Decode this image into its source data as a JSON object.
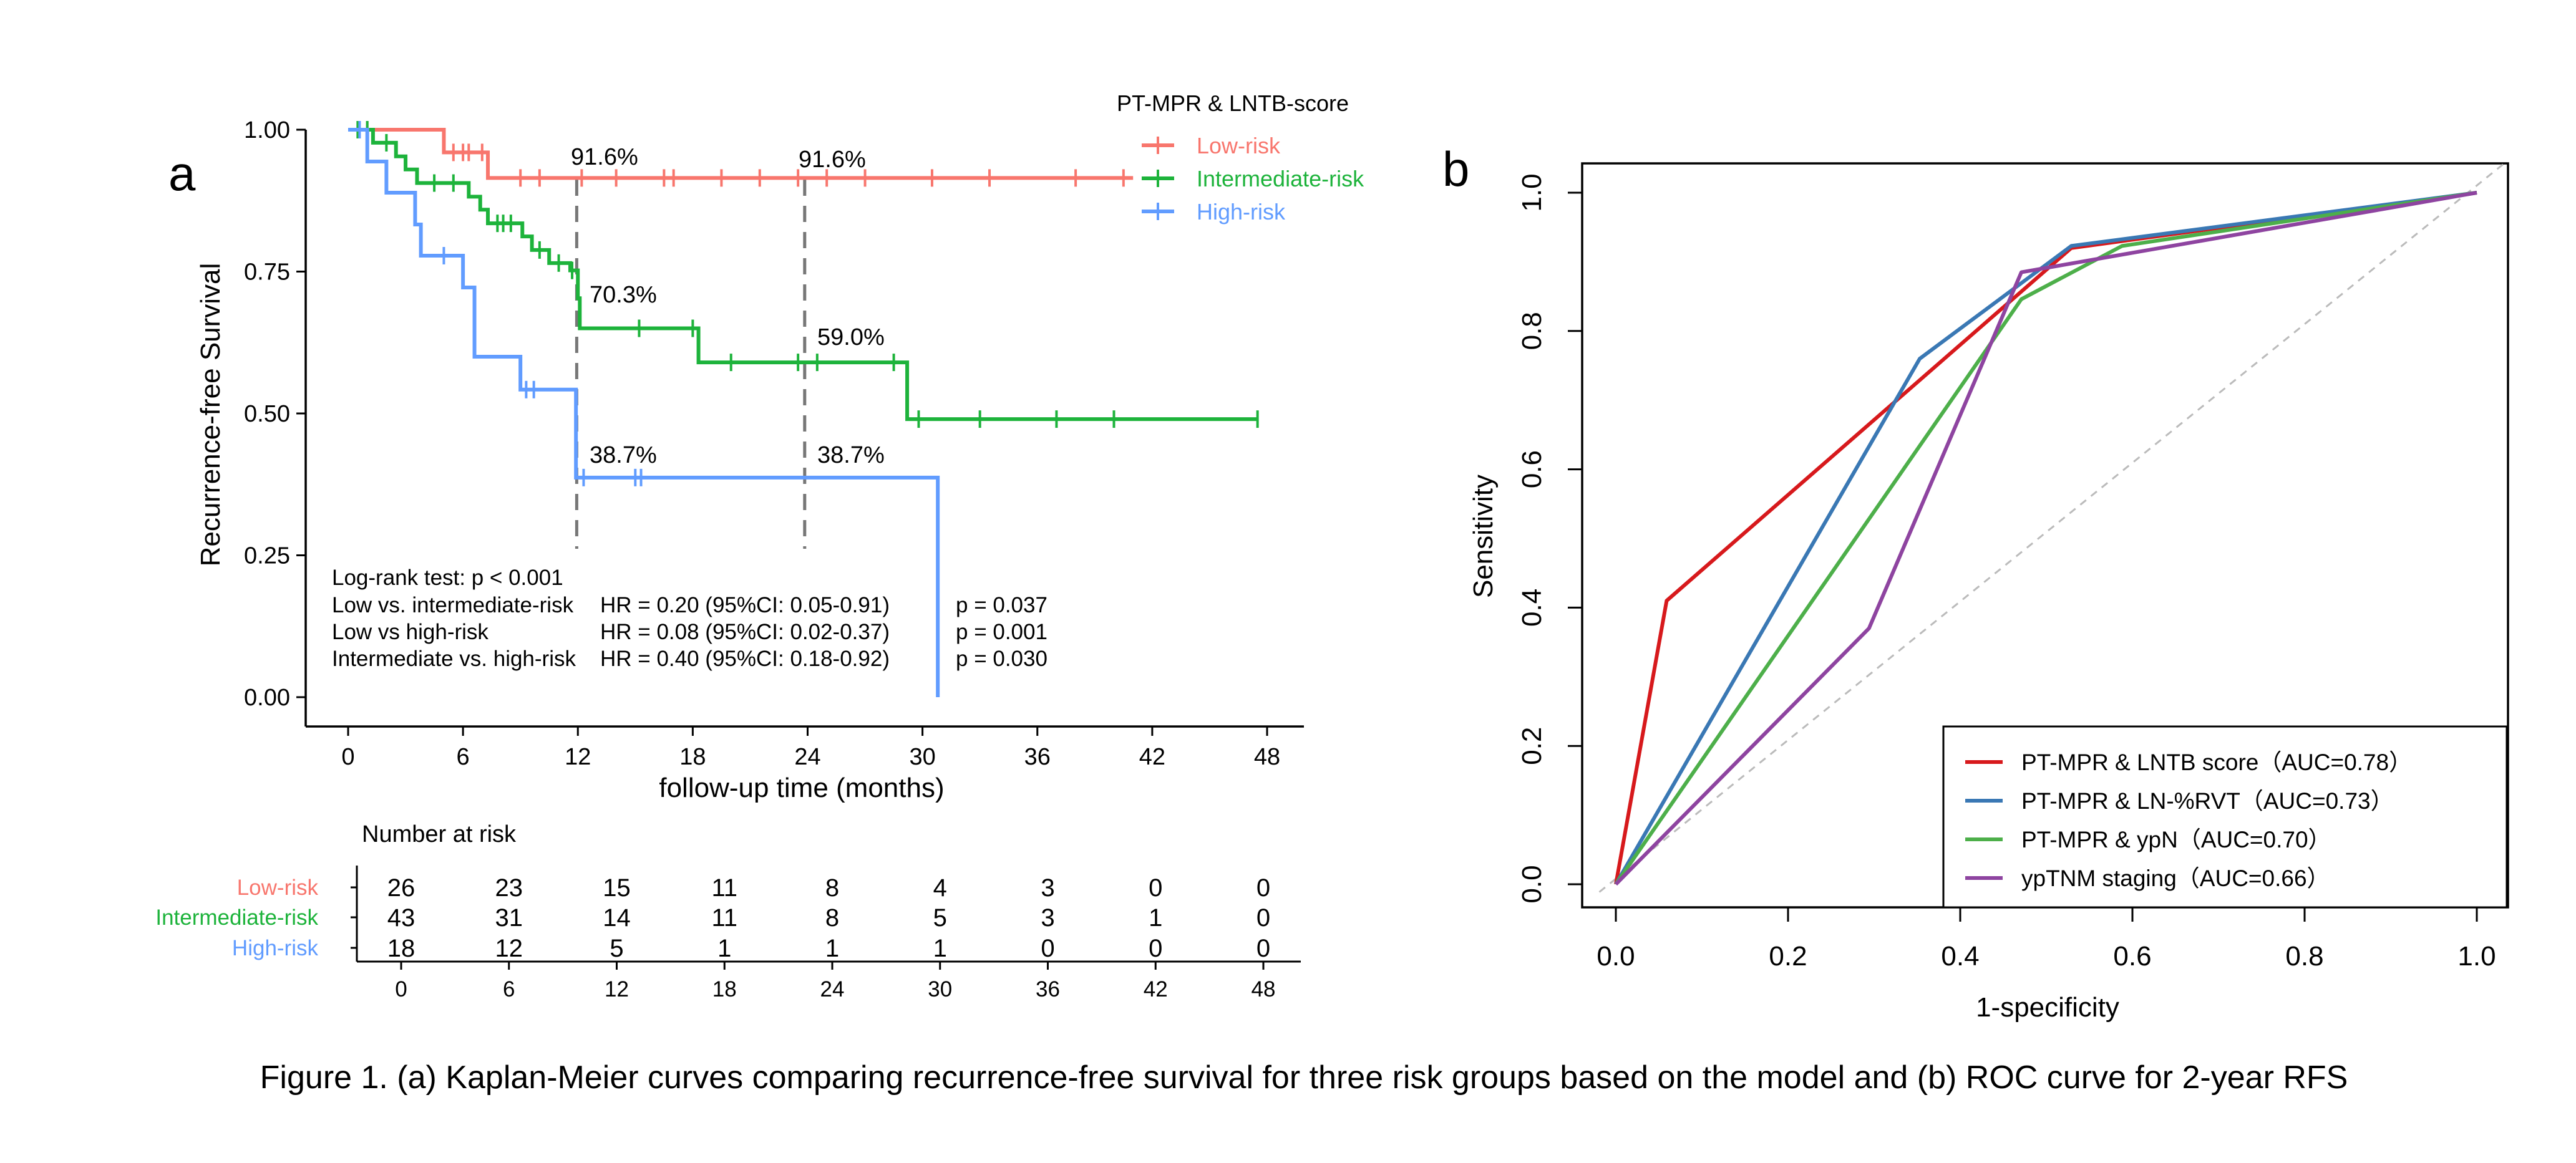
{
  "chart_data": [
    {
      "panel_label": "a",
      "type": "line",
      "subtype": "kaplan-meier",
      "title": "",
      "xlabel": "follow-up time (months)",
      "ylabel": "Recurrence-free Survival",
      "xlim": [
        0,
        48
      ],
      "ylim": [
        0,
        1
      ],
      "xticks": [
        "0",
        "6",
        "12",
        "18",
        "24",
        "30",
        "36",
        "42",
        "48"
      ],
      "yticks": [
        "0.00",
        "0.25",
        "0.50",
        "0.75",
        "1.00"
      ],
      "legend_title": "PT-MPR & LNTB-score",
      "series": [
        {
          "name": "Low-risk",
          "color": "#F8766D",
          "steps": [
            [
              0,
              1.0
            ],
            [
              5,
              0.96
            ],
            [
              7.3,
              0.915
            ],
            [
              41,
              0.915
            ]
          ],
          "censor_times": [
            1,
            5.5,
            6,
            6.3,
            7,
            9,
            10,
            12.2,
            14,
            16.5,
            17,
            19.5,
            21.5,
            23.5,
            25,
            27,
            30.5,
            33.5,
            38,
            40.5
          ]
        },
        {
          "name": "Intermediate-risk",
          "color": "#1DB33B",
          "steps": [
            [
              0,
              1.0
            ],
            [
              1.3,
              0.977
            ],
            [
              2.5,
              0.953
            ],
            [
              3,
              0.93
            ],
            [
              3.6,
              0.906
            ],
            [
              6.3,
              0.882
            ],
            [
              6.9,
              0.859
            ],
            [
              7.3,
              0.835
            ],
            [
              9.1,
              0.812
            ],
            [
              9.6,
              0.788
            ],
            [
              10.5,
              0.765
            ],
            [
              11.6,
              0.752
            ],
            [
              12,
              0.703
            ],
            [
              12.1,
              0.65
            ],
            [
              18.3,
              0.59
            ],
            [
              29.2,
              0.49
            ],
            [
              47.5,
              0.49
            ]
          ],
          "censor_times": [
            0.5,
            1,
            2,
            4.5,
            5.5,
            7.8,
            8.1,
            8.5,
            10,
            11,
            11.7,
            15.2,
            18,
            20,
            23.5,
            24.5,
            28.5,
            29.8,
            33,
            37,
            40,
            47.5
          ]
        },
        {
          "name": "High-risk",
          "color": "#619CFF",
          "steps": [
            [
              0,
              1.0
            ],
            [
              1,
              0.944
            ],
            [
              2,
              0.889
            ],
            [
              3.5,
              0.833
            ],
            [
              3.8,
              0.778
            ],
            [
              6,
              0.722
            ],
            [
              6.6,
              0.6
            ],
            [
              9,
              0.542
            ],
            [
              11.9,
              0.387
            ],
            [
              30.8,
              0.387
            ],
            [
              30.8,
              0.0
            ]
          ],
          "censor_times": [
            0.6,
            5,
            9.3,
            9.7,
            12.3,
            15,
            15.3
          ]
        }
      ],
      "annotations": [
        "91.6%",
        "91.6%",
        "70.3%",
        "59.0%",
        "38.7%",
        "38.7%"
      ],
      "reference_lines_at_months": [
        12,
        24
      ],
      "stats": {
        "logrank": "Log-rank test: p < 0.001",
        "rows": [
          {
            "label": "Low vs. intermediate-risk",
            "hr": "HR = 0.20 (95%CI: 0.05-0.91)",
            "p": "p = 0.037"
          },
          {
            "label": "Low vs high-risk",
            "hr": "HR = 0.08 (95%CI: 0.02-0.37)",
            "p": "p = 0.001"
          },
          {
            "label": "Intermediate vs. high-risk",
            "hr": "HR = 0.40 (95%CI: 0.18-0.92)",
            "p": "p = 0.030"
          }
        ]
      },
      "risk_table": {
        "title": "Number at risk",
        "times": [
          "0",
          "6",
          "12",
          "18",
          "24",
          "30",
          "36",
          "42",
          "48"
        ],
        "rows": [
          {
            "name": "Low-risk",
            "color": "#F8766D",
            "values": [
              "26",
              "23",
              "15",
              "11",
              "8",
              "4",
              "3",
              "0",
              "0"
            ]
          },
          {
            "name": "Intermediate-risk",
            "color": "#1DB33B",
            "values": [
              "43",
              "31",
              "14",
              "11",
              "8",
              "5",
              "3",
              "1",
              "0"
            ]
          },
          {
            "name": "High-risk",
            "color": "#619CFF",
            "values": [
              "18",
              "12",
              "5",
              "1",
              "1",
              "1",
              "0",
              "0",
              "0"
            ]
          }
        ]
      }
    },
    {
      "panel_label": "b",
      "type": "line",
      "subtype": "roc",
      "title": "",
      "xlabel": "1-specificity",
      "ylabel": "Sensitivity",
      "xlim": [
        0,
        1
      ],
      "ylim": [
        0,
        1
      ],
      "xticks": [
        "0.0",
        "0.2",
        "0.4",
        "0.6",
        "0.8",
        "1.0"
      ],
      "yticks": [
        "0.0",
        "0.2",
        "0.4",
        "0.6",
        "0.8",
        "1.0"
      ],
      "diagonal_reference": true,
      "series": [
        {
          "name": "PT-MPR & LNTB score（AUC=0.78）",
          "color": "#D7191C",
          "points": [
            [
              0,
              0
            ],
            [
              0.059,
              0.41
            ],
            [
              0.529,
              0.92
            ],
            [
              1,
              1
            ]
          ]
        },
        {
          "name": "PT-MPR & LN-%RVT（AUC=0.73）",
          "color": "#3A78B4",
          "points": [
            [
              0,
              0
            ],
            [
              0.353,
              0.76
            ],
            [
              0.529,
              0.923
            ],
            [
              1,
              1
            ]
          ]
        },
        {
          "name": "PT-MPR & ypN（AUC=0.70）",
          "color": "#4DAF4A",
          "points": [
            [
              0,
              0
            ],
            [
              0.471,
              0.846
            ],
            [
              0.588,
              0.923
            ],
            [
              1,
              1
            ]
          ]
        },
        {
          "name": "ypTNM staging（AUC=0.66）",
          "color": "#8E44A0",
          "points": [
            [
              0,
              0
            ],
            [
              0.294,
              0.37
            ],
            [
              0.471,
              0.885
            ],
            [
              1,
              1
            ]
          ]
        }
      ]
    }
  ],
  "caption": "Figure 1. (a) Kaplan-Meier curves comparing recurrence-free survival for three risk groups based on the model  and (b) ROC curve for 2-year RFS"
}
